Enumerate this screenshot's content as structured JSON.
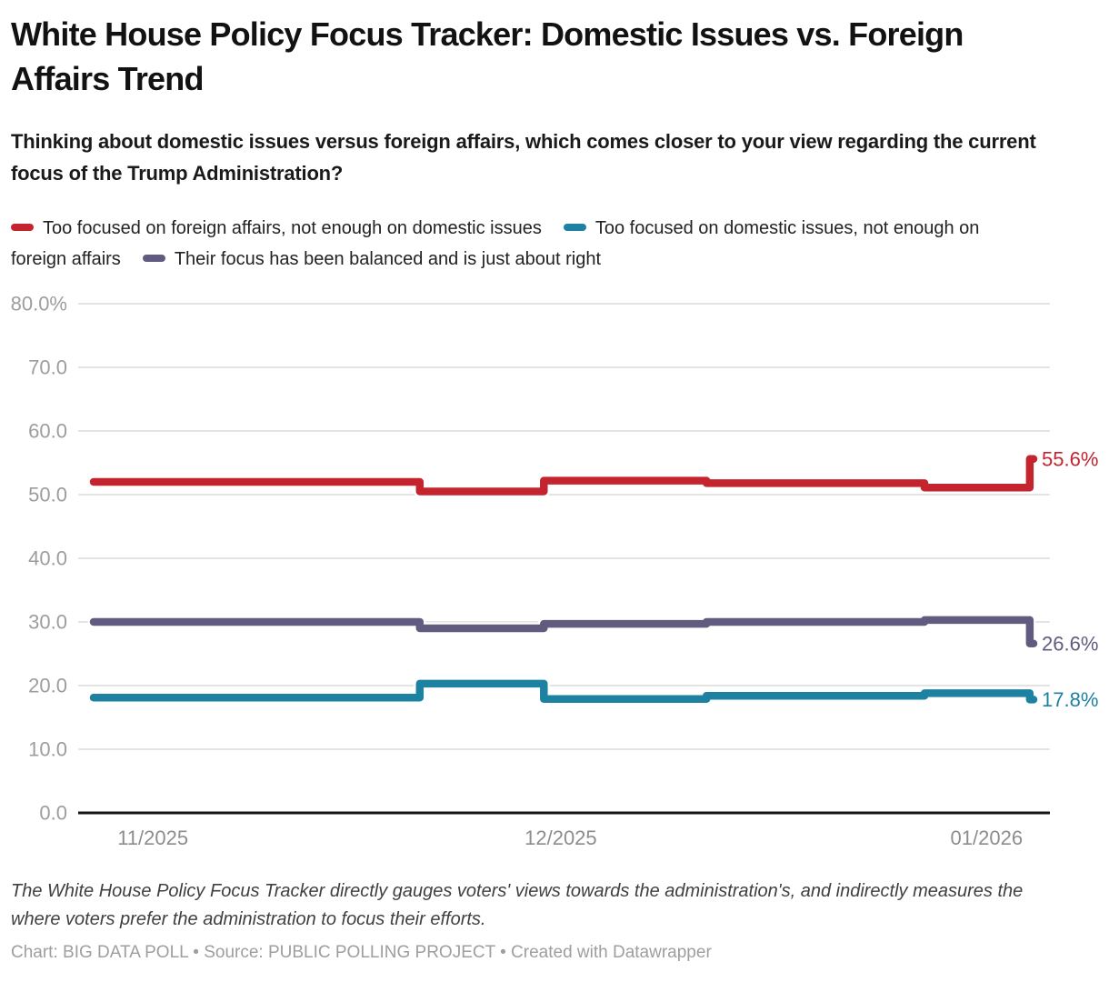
{
  "header": {
    "title": "White House Policy Focus Tracker: Domestic Issues vs. Foreign Affairs Trend",
    "subtitle": "Thinking about domestic issues versus foreign affairs, which comes closer to your view regarding the current focus of the Trump Administration?"
  },
  "chart_data": {
    "type": "line",
    "line_style": "step",
    "grid": "horizontal",
    "legend_position": "top",
    "ylim": [
      0,
      80
    ],
    "y_ticks": [
      {
        "value": 80,
        "label": "80.0%"
      },
      {
        "value": 70,
        "label": "70.0"
      },
      {
        "value": 60,
        "label": "60.0"
      },
      {
        "value": 50,
        "label": "50.0"
      },
      {
        "value": 40,
        "label": "40.0"
      },
      {
        "value": 30,
        "label": "30.0"
      },
      {
        "value": 20,
        "label": "20.0"
      },
      {
        "value": 10,
        "label": "10.0"
      },
      {
        "value": 0,
        "label": "0.0"
      }
    ],
    "x_ticks": [
      {
        "position": 0.063,
        "label": "11/2025"
      },
      {
        "position": 0.497,
        "label": "12/2025"
      },
      {
        "position": 0.95,
        "label": "01/2026"
      }
    ],
    "x_breakpoints": [
      0,
      0.347,
      0.479,
      0.652,
      0.884,
      0.996,
      1
    ],
    "series": [
      {
        "name": "Too focused on foreign affairs, not enough on domestic issues",
        "color": "#c3242e",
        "values": [
          52.0,
          50.5,
          52.2,
          51.8,
          51.1,
          55.6
        ],
        "end_label": "55.6%"
      },
      {
        "name": "Too focused on domestic issues, not enough on foreign affairs",
        "color": "#1d81a2",
        "values": [
          18.1,
          20.3,
          17.9,
          18.4,
          18.8,
          17.8
        ],
        "end_label": "17.8%"
      },
      {
        "name": "Their focus has been balanced and is just about right",
        "color": "#615c7f",
        "values": [
          30.0,
          29.0,
          29.7,
          30.0,
          30.3,
          26.6
        ],
        "end_label": "26.6%"
      }
    ],
    "colors": {
      "gridline": "#dcdcdc",
      "baseline": "#161616",
      "tick_text": "#9d9d9d"
    }
  },
  "footer": {
    "note": "The White House Policy Focus Tracker directly gauges voters' views towards the administration's, and indirectly measures the where voters prefer the administration to focus their efforts.",
    "credit": "Chart: BIG DATA POLL • Source: PUBLIC POLLING PROJECT • Created with Datawrapper"
  }
}
